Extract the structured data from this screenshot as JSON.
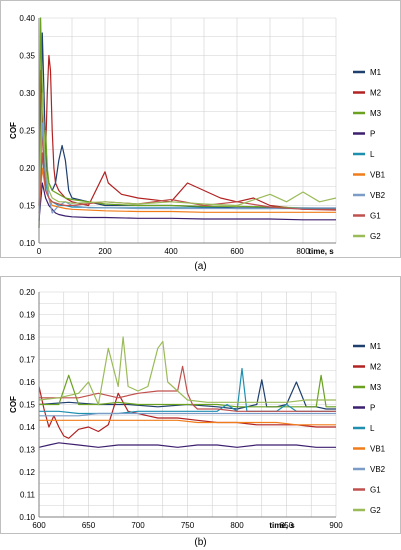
{
  "chart_data": [
    {
      "type": "line",
      "panel_label": "(a)",
      "xlabel": "time, s",
      "ylabel": "COF",
      "xlim": [
        0,
        900
      ],
      "ylim": [
        0.1,
        0.4
      ],
      "xticks": [
        0,
        200,
        400,
        600,
        800
      ],
      "xtick_labels": [
        "0",
        "200",
        "400",
        "600",
        "800"
      ],
      "yticks": [
        0.1,
        0.15,
        0.2,
        0.25,
        0.3,
        0.35,
        0.4
      ],
      "ytick_labels": [
        "0.10",
        "0.15",
        "0.20",
        "0.25",
        "0.30",
        "0.35",
        "0.40"
      ],
      "grid": true,
      "legend_position": "right",
      "series": [
        {
          "name": "M1",
          "color": "#1f3f6e",
          "x": [
            0,
            5,
            10,
            15,
            20,
            25,
            30,
            40,
            50,
            60,
            70,
            80,
            90,
            100,
            150,
            200,
            300,
            400,
            500,
            600,
            700,
            800,
            900
          ],
          "y": [
            0.12,
            0.25,
            0.38,
            0.3,
            0.22,
            0.19,
            0.18,
            0.17,
            0.18,
            0.21,
            0.23,
            0.21,
            0.17,
            0.16,
            0.155,
            0.15,
            0.15,
            0.15,
            0.148,
            0.147,
            0.147,
            0.146,
            0.146
          ]
        },
        {
          "name": "M2",
          "color": "#b22222",
          "x": [
            0,
            5,
            10,
            15,
            20,
            25,
            30,
            35,
            40,
            45,
            50,
            60,
            80,
            100,
            150,
            200,
            210,
            250,
            300,
            400,
            450,
            500,
            550,
            600,
            650,
            700,
            800,
            900
          ],
          "y": [
            0.15,
            0.33,
            0.25,
            0.2,
            0.22,
            0.3,
            0.35,
            0.33,
            0.25,
            0.2,
            0.18,
            0.17,
            0.16,
            0.155,
            0.15,
            0.195,
            0.18,
            0.165,
            0.16,
            0.155,
            0.18,
            0.17,
            0.16,
            0.155,
            0.16,
            0.15,
            0.145,
            0.144
          ]
        },
        {
          "name": "M3",
          "color": "#6aa121",
          "x": [
            0,
            5,
            10,
            15,
            20,
            25,
            30,
            40,
            60,
            80,
            100,
            150,
            200,
            300,
            400,
            500,
            600,
            700,
            800,
            900
          ],
          "y": [
            0.12,
            0.4,
            0.3,
            0.22,
            0.25,
            0.2,
            0.18,
            0.17,
            0.165,
            0.16,
            0.158,
            0.155,
            0.152,
            0.15,
            0.15,
            0.149,
            0.149,
            0.148,
            0.147,
            0.146
          ]
        },
        {
          "name": "P",
          "color": "#3c1f6e",
          "x": [
            0,
            10,
            20,
            30,
            40,
            50,
            60,
            80,
            100,
            150,
            200,
            300,
            400,
            500,
            600,
            700,
            800,
            900
          ],
          "y": [
            0.13,
            0.18,
            0.16,
            0.15,
            0.145,
            0.14,
            0.138,
            0.136,
            0.135,
            0.134,
            0.134,
            0.133,
            0.133,
            0.132,
            0.132,
            0.132,
            0.131,
            0.131
          ]
        },
        {
          "name": "L",
          "color": "#1f8fb0",
          "x": [
            0,
            10,
            20,
            30,
            40,
            60,
            80,
            100,
            200,
            300,
            400,
            500,
            600,
            700,
            800,
            900
          ],
          "y": [
            0.13,
            0.22,
            0.18,
            0.16,
            0.155,
            0.15,
            0.15,
            0.148,
            0.147,
            0.147,
            0.147,
            0.147,
            0.146,
            0.146,
            0.146,
            0.146
          ]
        },
        {
          "name": "VB1",
          "color": "#f07c1a",
          "x": [
            0,
            10,
            20,
            30,
            40,
            60,
            80,
            100,
            200,
            300,
            400,
            500,
            600,
            700,
            800,
            900
          ],
          "y": [
            0.14,
            0.2,
            0.17,
            0.16,
            0.15,
            0.148,
            0.146,
            0.145,
            0.143,
            0.142,
            0.142,
            0.141,
            0.141,
            0.141,
            0.141,
            0.141
          ]
        },
        {
          "name": "VB2",
          "color": "#7a9cc6",
          "x": [
            0,
            10,
            20,
            30,
            40,
            50,
            60,
            80,
            100,
            150,
            200,
            300,
            400,
            500,
            600,
            700,
            800,
            900
          ],
          "y": [
            0.13,
            0.26,
            0.19,
            0.16,
            0.14,
            0.145,
            0.15,
            0.155,
            0.15,
            0.147,
            0.147,
            0.146,
            0.146,
            0.146,
            0.146,
            0.146,
            0.147,
            0.147
          ]
        },
        {
          "name": "G1",
          "color": "#c0504d",
          "x": [
            0,
            10,
            20,
            30,
            40,
            60,
            80,
            100,
            200,
            300,
            400,
            500,
            600,
            700,
            800,
            900
          ],
          "y": [
            0.14,
            0.22,
            0.17,
            0.16,
            0.155,
            0.152,
            0.15,
            0.15,
            0.155,
            0.152,
            0.158,
            0.15,
            0.155,
            0.148,
            0.145,
            0.145
          ]
        },
        {
          "name": "G2",
          "color": "#9bbb59",
          "x": [
            0,
            10,
            20,
            30,
            40,
            60,
            80,
            100,
            200,
            300,
            400,
            500,
            600,
            700,
            750,
            800,
            850,
            900
          ],
          "y": [
            0.15,
            0.3,
            0.2,
            0.17,
            0.16,
            0.155,
            0.155,
            0.153,
            0.155,
            0.152,
            0.155,
            0.152,
            0.15,
            0.165,
            0.155,
            0.168,
            0.155,
            0.16
          ]
        }
      ]
    },
    {
      "type": "line",
      "panel_label": "(b)",
      "xlabel": "time, s",
      "ylabel": "COF",
      "xlim": [
        600,
        900
      ],
      "ylim": [
        0.1,
        0.2
      ],
      "xticks": [
        600,
        650,
        700,
        750,
        800,
        850,
        900
      ],
      "xtick_labels": [
        "600",
        "650",
        "700",
        "750",
        "800",
        "850",
        "900"
      ],
      "yticks": [
        0.1,
        0.11,
        0.12,
        0.13,
        0.14,
        0.15,
        0.16,
        0.17,
        0.18,
        0.19,
        0.2
      ],
      "ytick_labels": [
        "0.10",
        "0.11",
        "0.12",
        "0.13",
        "0.14",
        "0.15",
        "0.16",
        "0.17",
        "0.18",
        "0.19",
        "0.20"
      ],
      "grid": true,
      "legend_position": "right",
      "series": [
        {
          "name": "M1",
          "color": "#1f3f6e",
          "x": [
            600,
            630,
            660,
            690,
            720,
            750,
            780,
            800,
            810,
            820,
            825,
            830,
            840,
            850,
            860,
            870,
            880,
            890,
            900
          ],
          "y": [
            0.15,
            0.151,
            0.15,
            0.15,
            0.149,
            0.15,
            0.149,
            0.148,
            0.149,
            0.15,
            0.161,
            0.149,
            0.149,
            0.15,
            0.16,
            0.149,
            0.149,
            0.148,
            0.148
          ]
        },
        {
          "name": "M2",
          "color": "#b22222",
          "x": [
            600,
            605,
            610,
            615,
            620,
            625,
            630,
            640,
            650,
            660,
            670,
            680,
            690,
            700,
            710,
            720,
            740,
            760,
            780,
            800,
            820,
            840,
            860,
            880,
            900
          ],
          "y": [
            0.158,
            0.148,
            0.14,
            0.145,
            0.14,
            0.136,
            0.135,
            0.139,
            0.14,
            0.138,
            0.141,
            0.155,
            0.147,
            0.146,
            0.145,
            0.144,
            0.144,
            0.143,
            0.142,
            0.142,
            0.141,
            0.141,
            0.141,
            0.14,
            0.14
          ]
        },
        {
          "name": "M3",
          "color": "#6aa121",
          "x": [
            600,
            620,
            630,
            640,
            660,
            680,
            700,
            720,
            740,
            760,
            780,
            800,
            820,
            840,
            860,
            870,
            880,
            885,
            890,
            900
          ],
          "y": [
            0.15,
            0.15,
            0.163,
            0.15,
            0.15,
            0.151,
            0.15,
            0.15,
            0.15,
            0.15,
            0.15,
            0.149,
            0.149,
            0.149,
            0.149,
            0.149,
            0.149,
            0.163,
            0.149,
            0.149
          ]
        },
        {
          "name": "P",
          "color": "#3c1f6e",
          "x": [
            600,
            610,
            620,
            640,
            660,
            680,
            700,
            720,
            740,
            760,
            780,
            800,
            820,
            840,
            860,
            880,
            900
          ],
          "y": [
            0.131,
            0.132,
            0.133,
            0.132,
            0.131,
            0.132,
            0.132,
            0.132,
            0.131,
            0.132,
            0.132,
            0.131,
            0.132,
            0.132,
            0.132,
            0.131,
            0.131
          ]
        },
        {
          "name": "L",
          "color": "#1f8fb0",
          "x": [
            600,
            620,
            640,
            660,
            680,
            700,
            720,
            740,
            760,
            780,
            790,
            800,
            805,
            810,
            820,
            840,
            850,
            860,
            880,
            900
          ],
          "y": [
            0.147,
            0.147,
            0.146,
            0.146,
            0.146,
            0.147,
            0.147,
            0.147,
            0.147,
            0.147,
            0.15,
            0.147,
            0.166,
            0.147,
            0.147,
            0.147,
            0.15,
            0.147,
            0.147,
            0.147
          ]
        },
        {
          "name": "VB1",
          "color": "#f07c1a",
          "x": [
            600,
            620,
            640,
            660,
            680,
            700,
            720,
            740,
            760,
            780,
            800,
            820,
            840,
            860,
            880,
            900
          ],
          "y": [
            0.143,
            0.143,
            0.143,
            0.143,
            0.143,
            0.143,
            0.143,
            0.143,
            0.142,
            0.142,
            0.142,
            0.142,
            0.142,
            0.141,
            0.141,
            0.141
          ]
        },
        {
          "name": "VB2",
          "color": "#7a9cc6",
          "x": [
            600,
            620,
            640,
            660,
            680,
            700,
            720,
            740,
            760,
            780,
            800,
            820,
            840,
            860,
            880,
            900
          ],
          "y": [
            0.145,
            0.145,
            0.145,
            0.146,
            0.146,
            0.146,
            0.146,
            0.146,
            0.146,
            0.146,
            0.146,
            0.146,
            0.146,
            0.146,
            0.146,
            0.146
          ]
        },
        {
          "name": "G1",
          "color": "#c0504d",
          "x": [
            600,
            620,
            640,
            660,
            680,
            700,
            720,
            740,
            745,
            750,
            755,
            760,
            780,
            800,
            820,
            840,
            860,
            880,
            900
          ],
          "y": [
            0.153,
            0.153,
            0.153,
            0.155,
            0.153,
            0.155,
            0.156,
            0.156,
            0.167,
            0.155,
            0.15,
            0.148,
            0.148,
            0.147,
            0.147,
            0.147,
            0.147,
            0.147,
            0.147
          ]
        },
        {
          "name": "G2",
          "color": "#9bbb59",
          "x": [
            600,
            620,
            640,
            650,
            660,
            670,
            680,
            685,
            690,
            700,
            710,
            720,
            725,
            730,
            740,
            750,
            770,
            790,
            810,
            830,
            850,
            870,
            890,
            900
          ],
          "y": [
            0.152,
            0.153,
            0.155,
            0.16,
            0.15,
            0.175,
            0.158,
            0.18,
            0.158,
            0.156,
            0.158,
            0.175,
            0.178,
            0.16,
            0.156,
            0.152,
            0.151,
            0.151,
            0.151,
            0.151,
            0.151,
            0.152,
            0.152,
            0.152
          ]
        }
      ]
    }
  ]
}
